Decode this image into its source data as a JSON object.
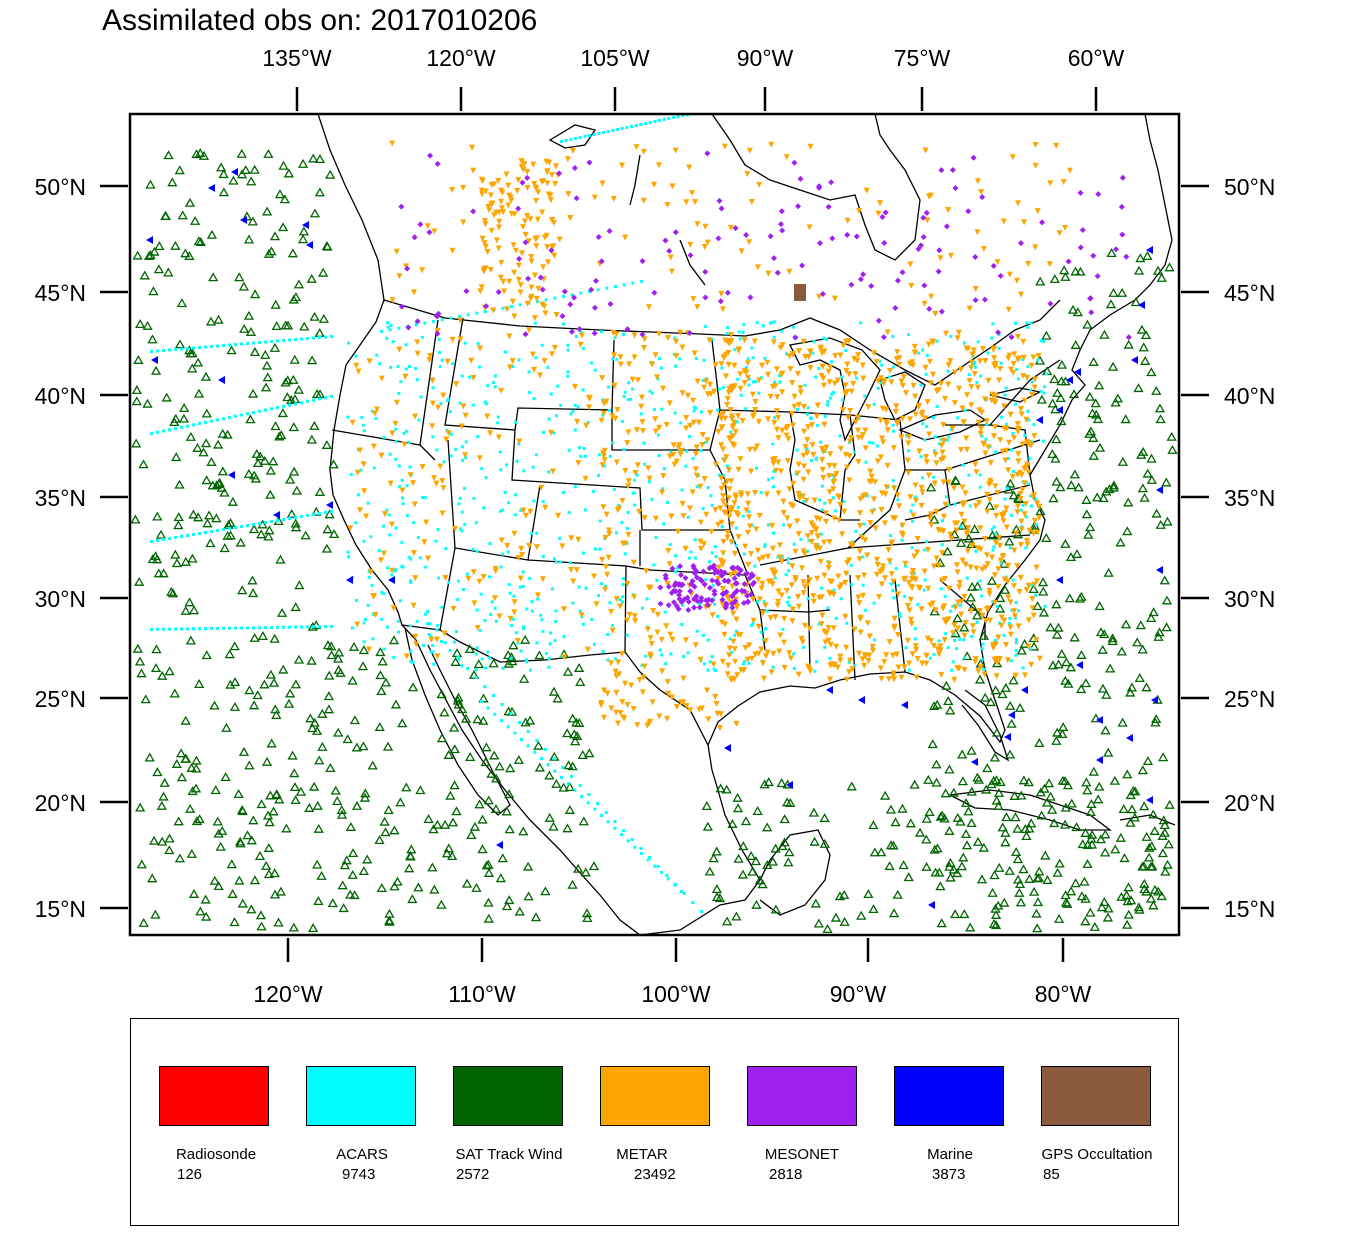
{
  "title": "Assimilated obs on: 2017010206",
  "top_lon_labels": [
    "135°W",
    "120°W",
    "105°W",
    "90°W",
    "75°W",
    "60°W"
  ],
  "bottom_lon_labels": [
    "120°W",
    "110°W",
    "100°W",
    "90°W",
    "80°W"
  ],
  "lat_labels": [
    "50°N",
    "45°N",
    "40°N",
    "35°N",
    "30°N",
    "25°N",
    "20°N",
    "15°N"
  ],
  "colors": {
    "radiosonde": "#ff0000",
    "acars": "#00ffff",
    "sat_track_wind": "#006400",
    "metar": "#ffa500",
    "mesonet": "#a020f0",
    "marine": "#0000ff",
    "gps": "#8b5a3c",
    "boundary": "#000000"
  },
  "legend": [
    {
      "name": "Radiosonde",
      "count": "126",
      "color": "#ff0000"
    },
    {
      "name": "ACARS",
      "count": "9743",
      "color": "#00ffff"
    },
    {
      "name": "SAT Track Wind",
      "count": "2572",
      "color": "#006400"
    },
    {
      "name": "METAR",
      "count": "23492",
      "color": "#ffa500"
    },
    {
      "name": "MESONET",
      "count": "2818",
      "color": "#a020f0"
    },
    {
      "name": "Marine",
      "count": "3873",
      "color": "#0000ff"
    },
    {
      "name": "GPS Occultation",
      "count": "85",
      "color": "#8b5a3c"
    }
  ]
}
